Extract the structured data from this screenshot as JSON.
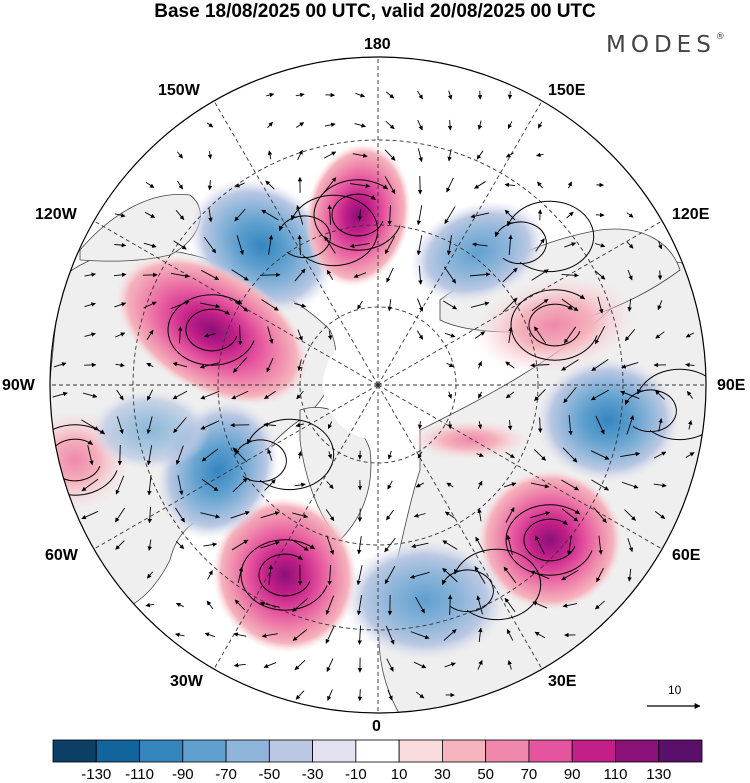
{
  "title": "Base 18/08/2025 00 UTC, valid 20/08/2025 00 UTC",
  "brand": "MODES",
  "brand_mark": "®",
  "longitude_labels": {
    "lon_180": "180",
    "lon_150e": "150E",
    "lon_120e": "120E",
    "lon_90e": "90E",
    "lon_60e": "60E",
    "lon_30e": "30E",
    "lon_0": "0",
    "lon_30w": "30W",
    "lon_60w": "60W",
    "lon_90w": "90W",
    "lon_120w": "120W",
    "lon_150w": "150W"
  },
  "vector_scale": {
    "label": "10"
  },
  "colorbar": {
    "colors": [
      "#0b3f66",
      "#11659c",
      "#3585bf",
      "#5fa0cf",
      "#8fb6da",
      "#bac8e3",
      "#e2e2f0",
      "#ffffff",
      "#fbdcde",
      "#f5b3bd",
      "#ef88ac",
      "#e5559f",
      "#c21f88",
      "#8b1078",
      "#5a0f6b"
    ],
    "labels": [
      "-130",
      "-110",
      "-90",
      "-70",
      "-50",
      "-30",
      "-10",
      "10",
      "30",
      "50",
      "70",
      "90",
      "110",
      "130"
    ]
  },
  "palette": {
    "land": "#efefef",
    "ocean": "#ffffff",
    "coast": "#444444"
  }
}
